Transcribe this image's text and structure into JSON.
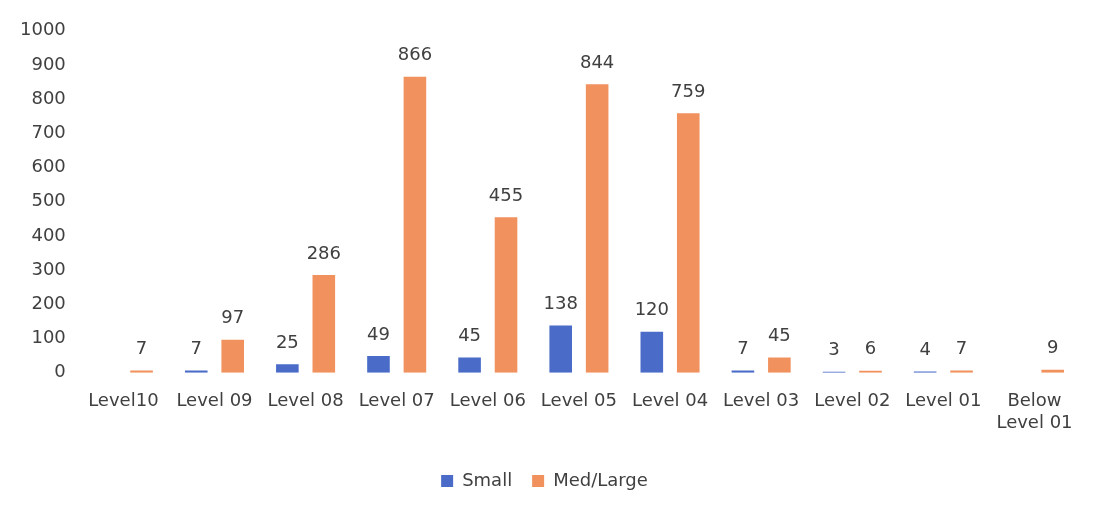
{
  "chart_data": {
    "type": "bar",
    "categories": [
      "Level10",
      "Level 09",
      "Level 08",
      "Level 07",
      "Level 06",
      "Level 05",
      "Level 04",
      "Level 03",
      "Level 02",
      "Level 01",
      "Below Level 01"
    ],
    "series": [
      {
        "name": "Small",
        "color": "#4a6cc8",
        "values": [
          null,
          7,
          25,
          49,
          45,
          138,
          120,
          7,
          3,
          4,
          null
        ]
      },
      {
        "name": "Med/Large",
        "color": "#f0915e",
        "values": [
          7,
          97,
          286,
          866,
          455,
          844,
          759,
          45,
          6,
          7,
          9
        ]
      }
    ],
    "ylim": [
      0,
      1000
    ],
    "yticks": [
      0,
      100,
      200,
      300,
      400,
      500,
      600,
      700,
      800,
      900,
      1000
    ],
    "grid": false,
    "legend": "bottom",
    "data_labels": true
  }
}
